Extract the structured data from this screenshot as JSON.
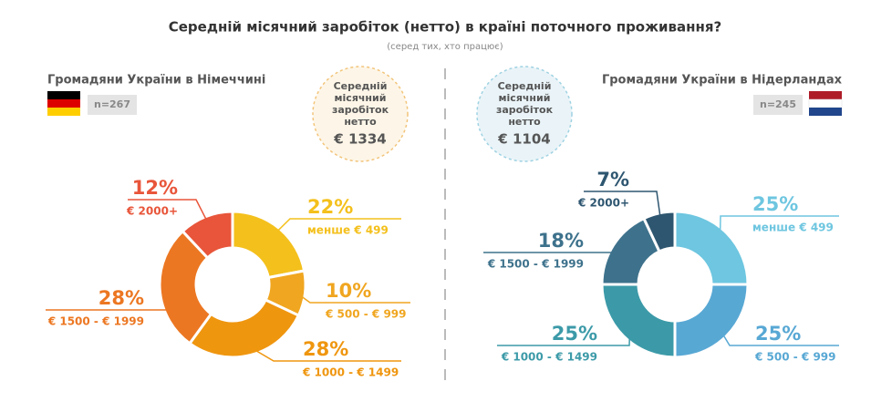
{
  "header": {
    "title": "Середній місячний заробіток (нетто) в країні поточного проживання?",
    "subtitle": "(серед тих, хто працює)"
  },
  "chart_data": [
    {
      "type": "donut",
      "title": "Громадяни України в Німеччині",
      "sample": "n=267",
      "average_caption": [
        "Середній",
        "місячний",
        "заробіток",
        "нетто"
      ],
      "average": "€ 1334",
      "categories": [
        "менше € 499",
        "€ 500 - € 999",
        "€ 1000 - € 1499",
        "€ 1500 - € 1999",
        "€ 2000+"
      ],
      "values": [
        22,
        10,
        28,
        28,
        12
      ],
      "value_labels": [
        "22%",
        "10%",
        "28%",
        "28%",
        "12%"
      ],
      "colors": [
        "#f4c01c",
        "#f0a620",
        "#ef960f",
        "#ec7722",
        "#e8553a"
      ]
    },
    {
      "type": "donut",
      "title": "Громадяни України в Нідерландах",
      "sample": "n=245",
      "average_caption": [
        "Середній",
        "місячний",
        "заробіток",
        "нетто"
      ],
      "average": "€ 1104",
      "categories": [
        "менше € 499",
        "€ 500 - € 999",
        "€ 1000 - € 1499",
        "€ 1500 - € 1999",
        "€ 2000+"
      ],
      "values": [
        25,
        25,
        25,
        18,
        7
      ],
      "value_labels": [
        "25%",
        "25%",
        "25%",
        "18%",
        "7%"
      ],
      "colors": [
        "#6ec6e0",
        "#58a8d4",
        "#3c9aa8",
        "#3e728c",
        "#2e5670"
      ]
    }
  ]
}
